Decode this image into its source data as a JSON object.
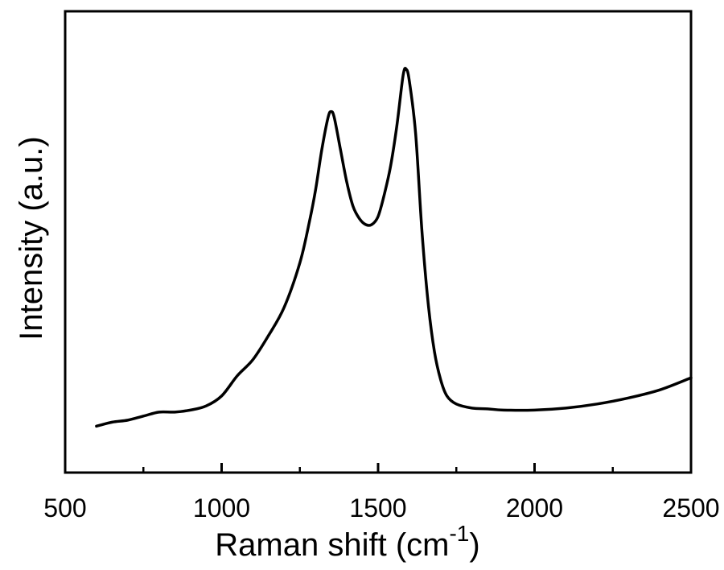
{
  "chart_data": {
    "type": "line",
    "xlabel": "Raman shift (cm",
    "xlabel_superscript": "-1",
    "xlabel_close": ")",
    "ylabel": "Intensity (a.u.)",
    "xlim": [
      500,
      2500
    ],
    "ylim": [
      0,
      1
    ],
    "y_tick_labels_shown": false,
    "x_ticks_major": [
      500,
      1000,
      1500,
      2000,
      2500
    ],
    "x_tick_labels": [
      "500",
      "1000",
      "1500",
      "2000",
      "2500"
    ],
    "x_ticks_minor": [
      750,
      1250,
      1750,
      2250
    ],
    "grid": false,
    "line_color": "#000000",
    "series": [
      {
        "x": [
          600,
          650,
          700,
          750,
          800,
          850,
          900,
          950,
          1000,
          1050,
          1100,
          1150,
          1200,
          1250,
          1280,
          1300,
          1320,
          1340,
          1350,
          1360,
          1380,
          1400,
          1420,
          1440,
          1460,
          1480,
          1500,
          1520,
          1540,
          1560,
          1580,
          1590,
          1600,
          1620,
          1640,
          1660,
          1680,
          1700,
          1720,
          1750,
          1800,
          1850,
          1900,
          2000,
          2100,
          2200,
          2300,
          2400,
          2500
        ],
        "y": [
          0.115,
          0.125,
          0.13,
          0.14,
          0.15,
          0.15,
          0.155,
          0.165,
          0.19,
          0.24,
          0.28,
          0.34,
          0.41,
          0.52,
          0.62,
          0.7,
          0.8,
          0.88,
          0.895,
          0.88,
          0.8,
          0.72,
          0.66,
          0.63,
          0.615,
          0.615,
          0.635,
          0.69,
          0.76,
          0.86,
          0.985,
          1.0,
          0.97,
          0.84,
          0.6,
          0.42,
          0.3,
          0.23,
          0.19,
          0.17,
          0.16,
          0.158,
          0.155,
          0.155,
          0.16,
          0.17,
          0.185,
          0.205,
          0.235
        ]
      }
    ]
  }
}
